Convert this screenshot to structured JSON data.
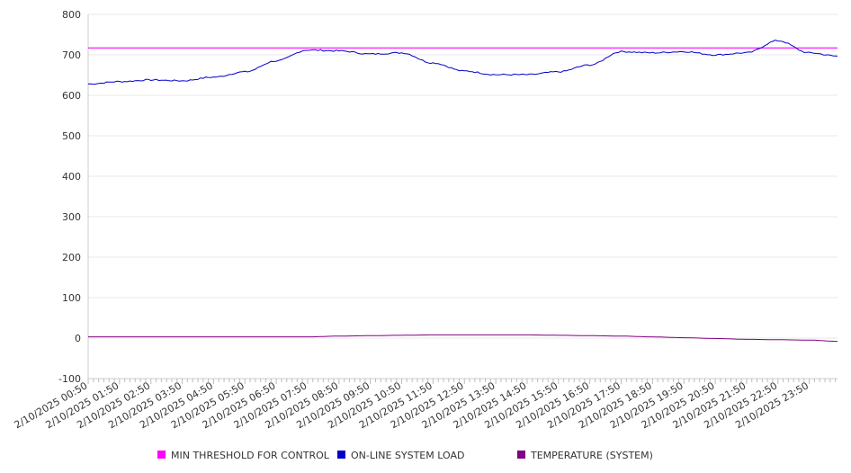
{
  "chart_data": {
    "type": "line",
    "title": "",
    "xlabel": "",
    "ylabel": "",
    "ylim": [
      -100,
      800
    ],
    "yticks": [
      800,
      700,
      600,
      500,
      400,
      300,
      200,
      100,
      0,
      -100
    ],
    "grid": true,
    "legend_position": "bottom",
    "x_tick_labels": [
      "2/10/2025 00:50",
      "2/10/2025 01:50",
      "2/10/2025 02:50",
      "2/10/2025 03:50",
      "2/10/2025 04:50",
      "2/10/2025 05:50",
      "2/10/2025 06:50",
      "2/10/2025 07:50",
      "2/10/2025 08:50",
      "2/10/2025 09:50",
      "2/10/2025 10:50",
      "2/10/2025 11:50",
      "2/10/2025 12:50",
      "2/10/2025 13:50",
      "2/10/2025 14:50",
      "2/10/2025 15:50",
      "2/10/2025 16:50",
      "2/10/2025 17:50",
      "2/10/2025 18:50",
      "2/10/2025 19:50",
      "2/10/2025 20:50",
      "2/10/2025 21:50",
      "2/10/2025 22:50",
      "2/10/2025 23:50"
    ],
    "x_hours": [
      0,
      1,
      2,
      3,
      4,
      5,
      6,
      7,
      8,
      9,
      10,
      11,
      12,
      13,
      14,
      15,
      16,
      17,
      18,
      19,
      20,
      21,
      22,
      23,
      23.9
    ],
    "series": [
      {
        "name": "MIN THRESHOLD FOR CONTROL",
        "color": "#ff00ff",
        "values": [
          717,
          717,
          717,
          717,
          717,
          717,
          717,
          717,
          717,
          717,
          717,
          717,
          717,
          717,
          717,
          717,
          717,
          717,
          717,
          717,
          717,
          717,
          717,
          717,
          717
        ]
      },
      {
        "name": "ON-LINE SYSTEM LOAD",
        "color": "#0000cc",
        "values": [
          628,
          634,
          638,
          636,
          645,
          658,
          685,
          712,
          710,
          702,
          705,
          680,
          660,
          651,
          651,
          658,
          675,
          708,
          705,
          708,
          700,
          705,
          735,
          705,
          697
        ]
      },
      {
        "name": "TEMPERATURE (SYSTEM)",
        "color": "#800080",
        "values": [
          3,
          3,
          3,
          3,
          3,
          3,
          3,
          3,
          5,
          6,
          7,
          8,
          8,
          8,
          8,
          7,
          6,
          5,
          3,
          1,
          -1,
          -3,
          -4,
          -5,
          -8
        ]
      }
    ]
  }
}
